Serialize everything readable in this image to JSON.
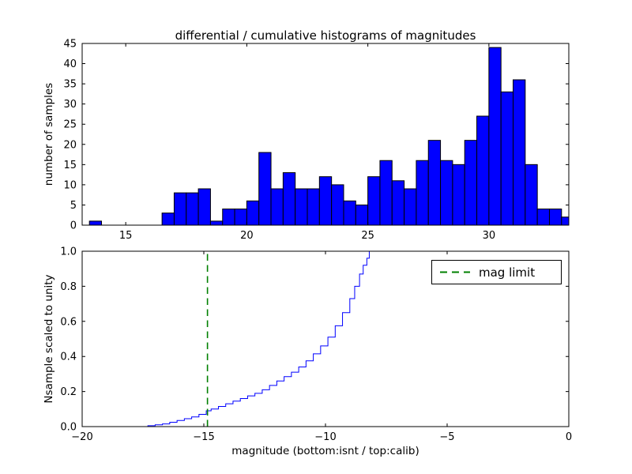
{
  "figure_background": "#ffffff",
  "chart_data": [
    {
      "type": "bar",
      "title": "differential / cumulative histograms of magnitudes",
      "ylabel": "number of samples",
      "xlabel": "",
      "color": "#0000ff",
      "edge_color": "#000000",
      "bin_start": 13.5,
      "bin_width": 0.5,
      "values": [
        1,
        0,
        0,
        0,
        0,
        0,
        3,
        8,
        8,
        9,
        1,
        4,
        4,
        6,
        18,
        9,
        13,
        9,
        9,
        12,
        10,
        6,
        5,
        12,
        16,
        11,
        9,
        16,
        21,
        16,
        15,
        21,
        27,
        44,
        33,
        36,
        15,
        4,
        4,
        2
      ],
      "xlim": [
        13.2,
        33.3
      ],
      "ylim": [
        0,
        45
      ],
      "xticks": [
        15,
        20,
        25,
        30
      ],
      "xtick_labels": [
        "15",
        "20",
        "25",
        "30"
      ],
      "yticks": [
        0,
        5,
        10,
        15,
        20,
        25,
        30,
        35,
        40,
        45
      ],
      "ytick_labels": [
        "0",
        "5",
        "10",
        "15",
        "20",
        "25",
        "30",
        "35",
        "40",
        "45"
      ],
      "grid": false,
      "legend": null
    },
    {
      "type": "line",
      "style": "step",
      "title": "",
      "ylabel": "Nsample scaled to unity",
      "xlabel": "magnitude (bottom:isnt / top:calib)",
      "color": "#0000ff",
      "xlim": [
        -20,
        0
      ],
      "ylim": [
        0,
        1.0
      ],
      "xticks": [
        -20,
        -15,
        -10,
        -5,
        0
      ],
      "xtick_labels": [
        "−20",
        "−15",
        "−10",
        "−5",
        "0"
      ],
      "yticks": [
        0.0,
        0.2,
        0.4,
        0.6,
        0.8,
        1.0
      ],
      "ytick_labels": [
        "0.0",
        "0.2",
        "0.4",
        "0.6",
        "0.8",
        "1.0"
      ],
      "grid": false,
      "points": [
        [
          -17.6,
          0.0
        ],
        [
          -17.3,
          0.005
        ],
        [
          -17.0,
          0.01
        ],
        [
          -16.7,
          0.015
        ],
        [
          -16.4,
          0.025
        ],
        [
          -16.1,
          0.035
        ],
        [
          -15.8,
          0.045
        ],
        [
          -15.5,
          0.055
        ],
        [
          -15.2,
          0.07
        ],
        [
          -14.9,
          0.09
        ],
        [
          -14.7,
          0.1
        ],
        [
          -14.4,
          0.115
        ],
        [
          -14.1,
          0.13
        ],
        [
          -13.8,
          0.145
        ],
        [
          -13.5,
          0.16
        ],
        [
          -13.2,
          0.175
        ],
        [
          -12.9,
          0.19
        ],
        [
          -12.6,
          0.21
        ],
        [
          -12.3,
          0.235
        ],
        [
          -12.0,
          0.26
        ],
        [
          -11.7,
          0.285
        ],
        [
          -11.4,
          0.31
        ],
        [
          -11.1,
          0.34
        ],
        [
          -10.8,
          0.375
        ],
        [
          -10.5,
          0.415
        ],
        [
          -10.2,
          0.46
        ],
        [
          -9.9,
          0.51
        ],
        [
          -9.6,
          0.575
        ],
        [
          -9.3,
          0.65
        ],
        [
          -9.0,
          0.73
        ],
        [
          -8.8,
          0.8
        ],
        [
          -8.6,
          0.87
        ],
        [
          -8.45,
          0.92
        ],
        [
          -8.3,
          0.96
        ],
        [
          -8.2,
          1.0
        ],
        [
          -8.0,
          1.0
        ]
      ],
      "vline": {
        "x": -14.85,
        "color": "#008000",
        "style": "dashed",
        "legend_label": "mag limit"
      },
      "legend_position": "upper right"
    }
  ]
}
